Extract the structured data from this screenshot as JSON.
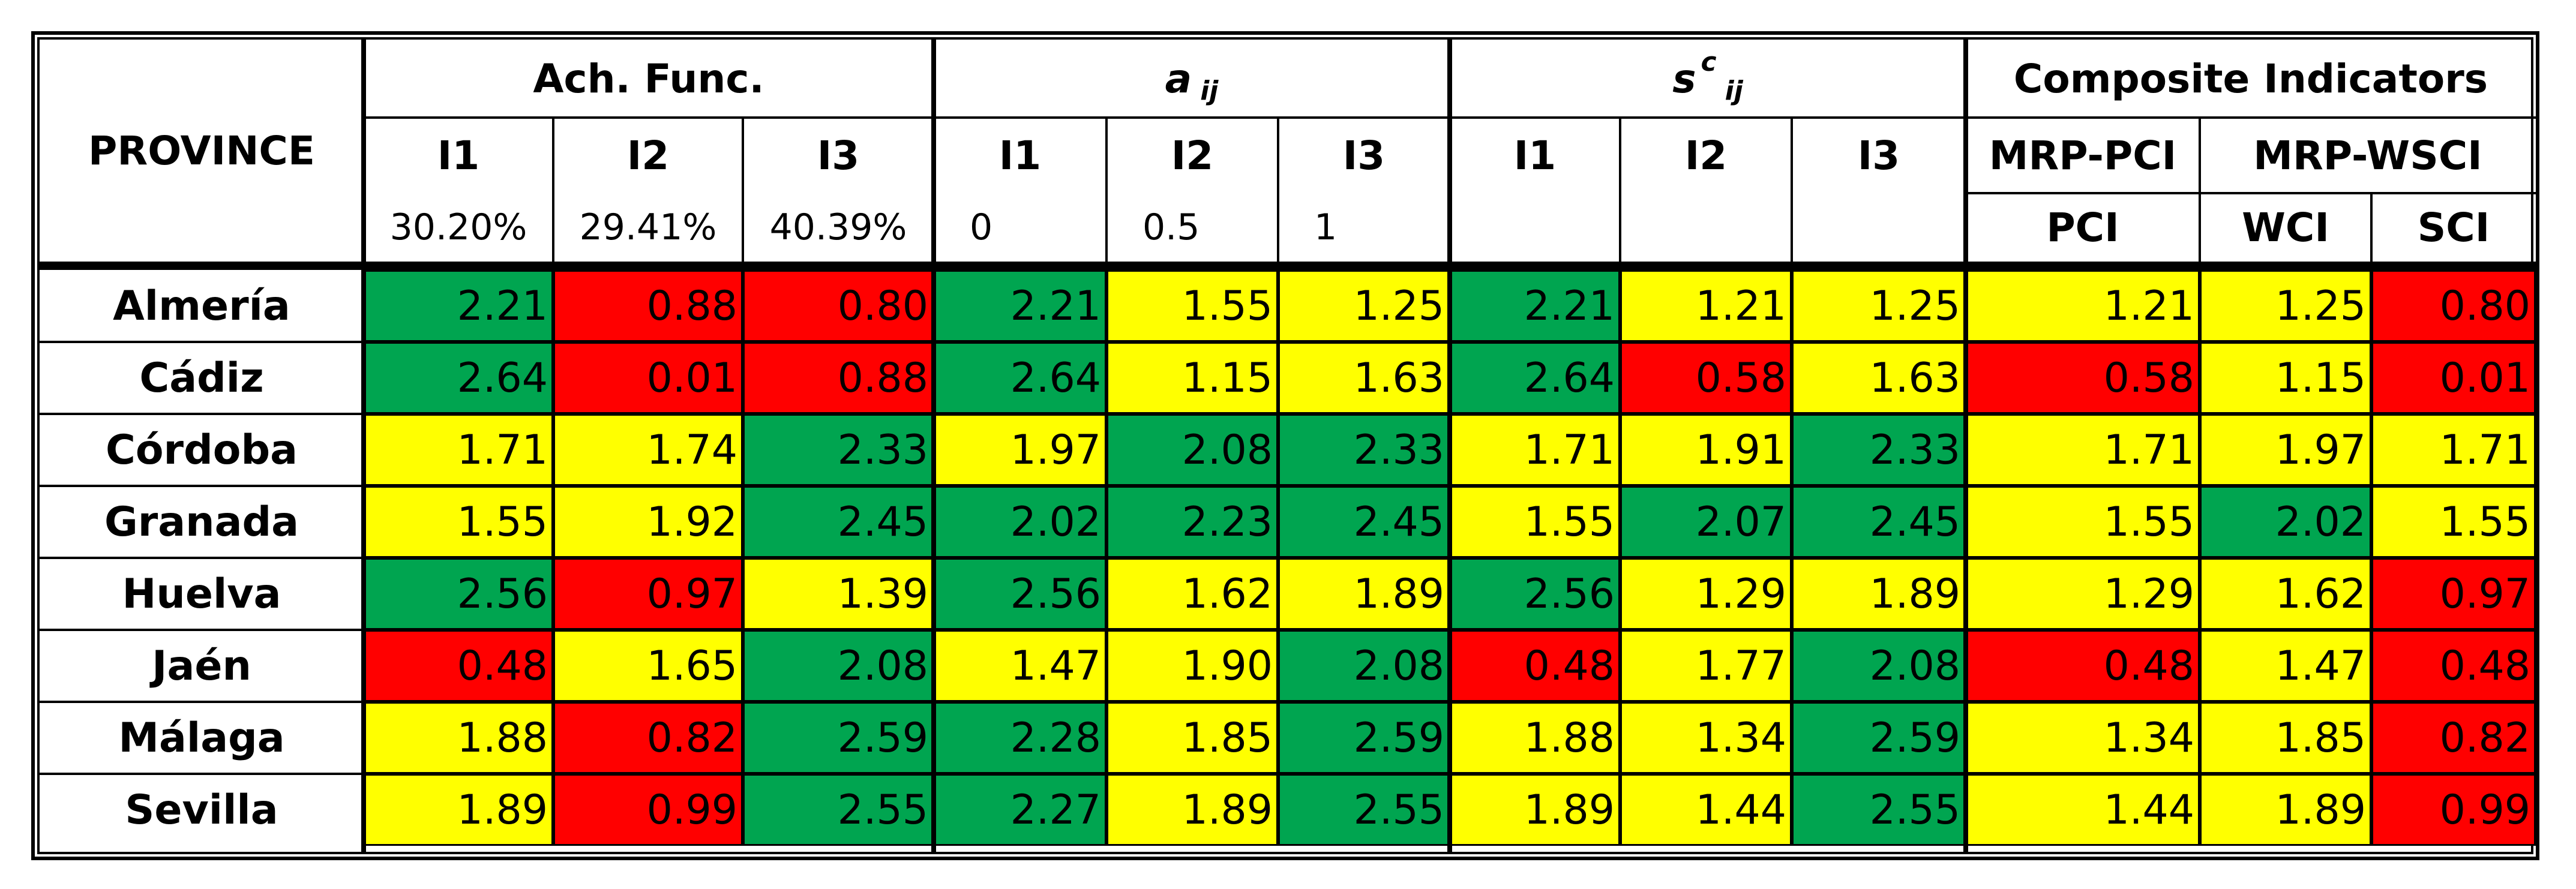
{
  "table": {
    "province_header": "PROVINCE",
    "groups": [
      {
        "label": "Ach. Func.",
        "sub": "",
        "sup": ""
      },
      {
        "label": "a",
        "sub": "ij",
        "sup": ""
      },
      {
        "label": "s",
        "sub": "ij",
        "sup": "c"
      },
      {
        "label": "Composite Indicators",
        "sub": "",
        "sup": ""
      }
    ],
    "subgroups": [
      "MRP-PCI",
      "MRP-WSCI"
    ],
    "col_headers": [
      "I1",
      "I2",
      "I3",
      "I1",
      "I2",
      "I3",
      "I1",
      "I2",
      "I3"
    ],
    "weights": [
      "30.20%",
      "29.41%",
      "40.39%"
    ],
    "aij_params": [
      "0",
      "0.5",
      "1"
    ],
    "ci_headers": [
      "PCI",
      "WCI",
      "SCI"
    ],
    "rows": [
      {
        "province": "Almería",
        "values": [
          "2.21",
          "0.88",
          "0.80",
          "2.21",
          "1.55",
          "1.25",
          "2.21",
          "1.21",
          "1.25",
          "1.21",
          "1.25",
          "0.80"
        ],
        "colors": [
          "g",
          "r",
          "r",
          "g",
          "y",
          "y",
          "g",
          "y",
          "y",
          "y",
          "y",
          "r"
        ]
      },
      {
        "province": "Cádiz",
        "values": [
          "2.64",
          "0.01",
          "0.88",
          "2.64",
          "1.15",
          "1.63",
          "2.64",
          "0.58",
          "1.63",
          "0.58",
          "1.15",
          "0.01"
        ],
        "colors": [
          "g",
          "r",
          "r",
          "g",
          "y",
          "y",
          "g",
          "r",
          "y",
          "r",
          "y",
          "r"
        ]
      },
      {
        "province": "Córdoba",
        "values": [
          "1.71",
          "1.74",
          "2.33",
          "1.97",
          "2.08",
          "2.33",
          "1.71",
          "1.91",
          "2.33",
          "1.71",
          "1.97",
          "1.71"
        ],
        "colors": [
          "y",
          "y",
          "g",
          "y",
          "g",
          "g",
          "y",
          "y",
          "g",
          "y",
          "y",
          "y"
        ]
      },
      {
        "province": "Granada",
        "values": [
          "1.55",
          "1.92",
          "2.45",
          "2.02",
          "2.23",
          "2.45",
          "1.55",
          "2.07",
          "2.45",
          "1.55",
          "2.02",
          "1.55"
        ],
        "colors": [
          "y",
          "y",
          "g",
          "g",
          "g",
          "g",
          "y",
          "g",
          "g",
          "y",
          "g",
          "y"
        ]
      },
      {
        "province": "Huelva",
        "values": [
          "2.56",
          "0.97",
          "1.39",
          "2.56",
          "1.62",
          "1.89",
          "2.56",
          "1.29",
          "1.89",
          "1.29",
          "1.62",
          "0.97"
        ],
        "colors": [
          "g",
          "r",
          "y",
          "g",
          "y",
          "y",
          "g",
          "y",
          "y",
          "y",
          "y",
          "r"
        ]
      },
      {
        "province": "Jaén",
        "values": [
          "0.48",
          "1.65",
          "2.08",
          "1.47",
          "1.90",
          "2.08",
          "0.48",
          "1.77",
          "2.08",
          "0.48",
          "1.47",
          "0.48"
        ],
        "colors": [
          "r",
          "y",
          "g",
          "y",
          "y",
          "g",
          "r",
          "y",
          "g",
          "r",
          "y",
          "r"
        ]
      },
      {
        "province": "Málaga",
        "values": [
          "1.88",
          "0.82",
          "2.59",
          "2.28",
          "1.85",
          "2.59",
          "1.88",
          "1.34",
          "2.59",
          "1.34",
          "1.85",
          "0.82"
        ],
        "colors": [
          "y",
          "r",
          "g",
          "g",
          "y",
          "g",
          "y",
          "y",
          "g",
          "y",
          "y",
          "r"
        ]
      },
      {
        "province": "Sevilla",
        "values": [
          "1.89",
          "0.99",
          "2.55",
          "2.27",
          "1.89",
          "2.55",
          "1.89",
          "1.44",
          "2.55",
          "1.44",
          "1.89",
          "0.99"
        ],
        "colors": [
          "y",
          "r",
          "g",
          "g",
          "y",
          "g",
          "y",
          "y",
          "g",
          "y",
          "y",
          "r"
        ]
      }
    ]
  }
}
